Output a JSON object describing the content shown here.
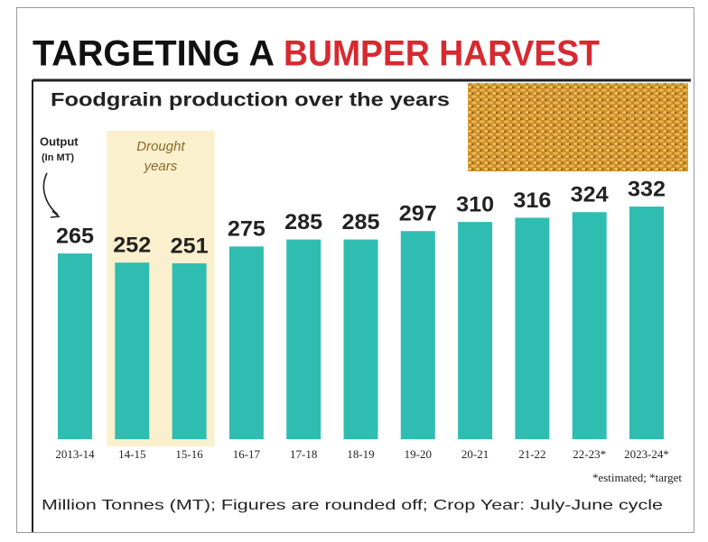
{
  "chart_data": {
    "type": "bar",
    "title": "TARGETING A",
    "title_emphasis": "BUMPER HARVEST",
    "subtitle": "Foodgrain production over the years",
    "axis_label": [
      "Output",
      "(In MT)"
    ],
    "highlight": {
      "label": [
        "Drought",
        "years"
      ],
      "from": "14-15",
      "to": "15-16"
    },
    "categories": [
      "2013-14",
      "14-15",
      "15-16",
      "16-17",
      "17-18",
      "18-19",
      "19-20",
      "20-21",
      "21-22",
      "22-23*",
      "2023-24*"
    ],
    "values": [
      265,
      252,
      251,
      275,
      285,
      285,
      297,
      310,
      316,
      324,
      332
    ],
    "color": "#2fbdb2",
    "footnotes": [
      "*estimated; *target",
      "Million Tonnes (MT); Figures are rounded off; Crop Year: July-June cycle"
    ]
  }
}
